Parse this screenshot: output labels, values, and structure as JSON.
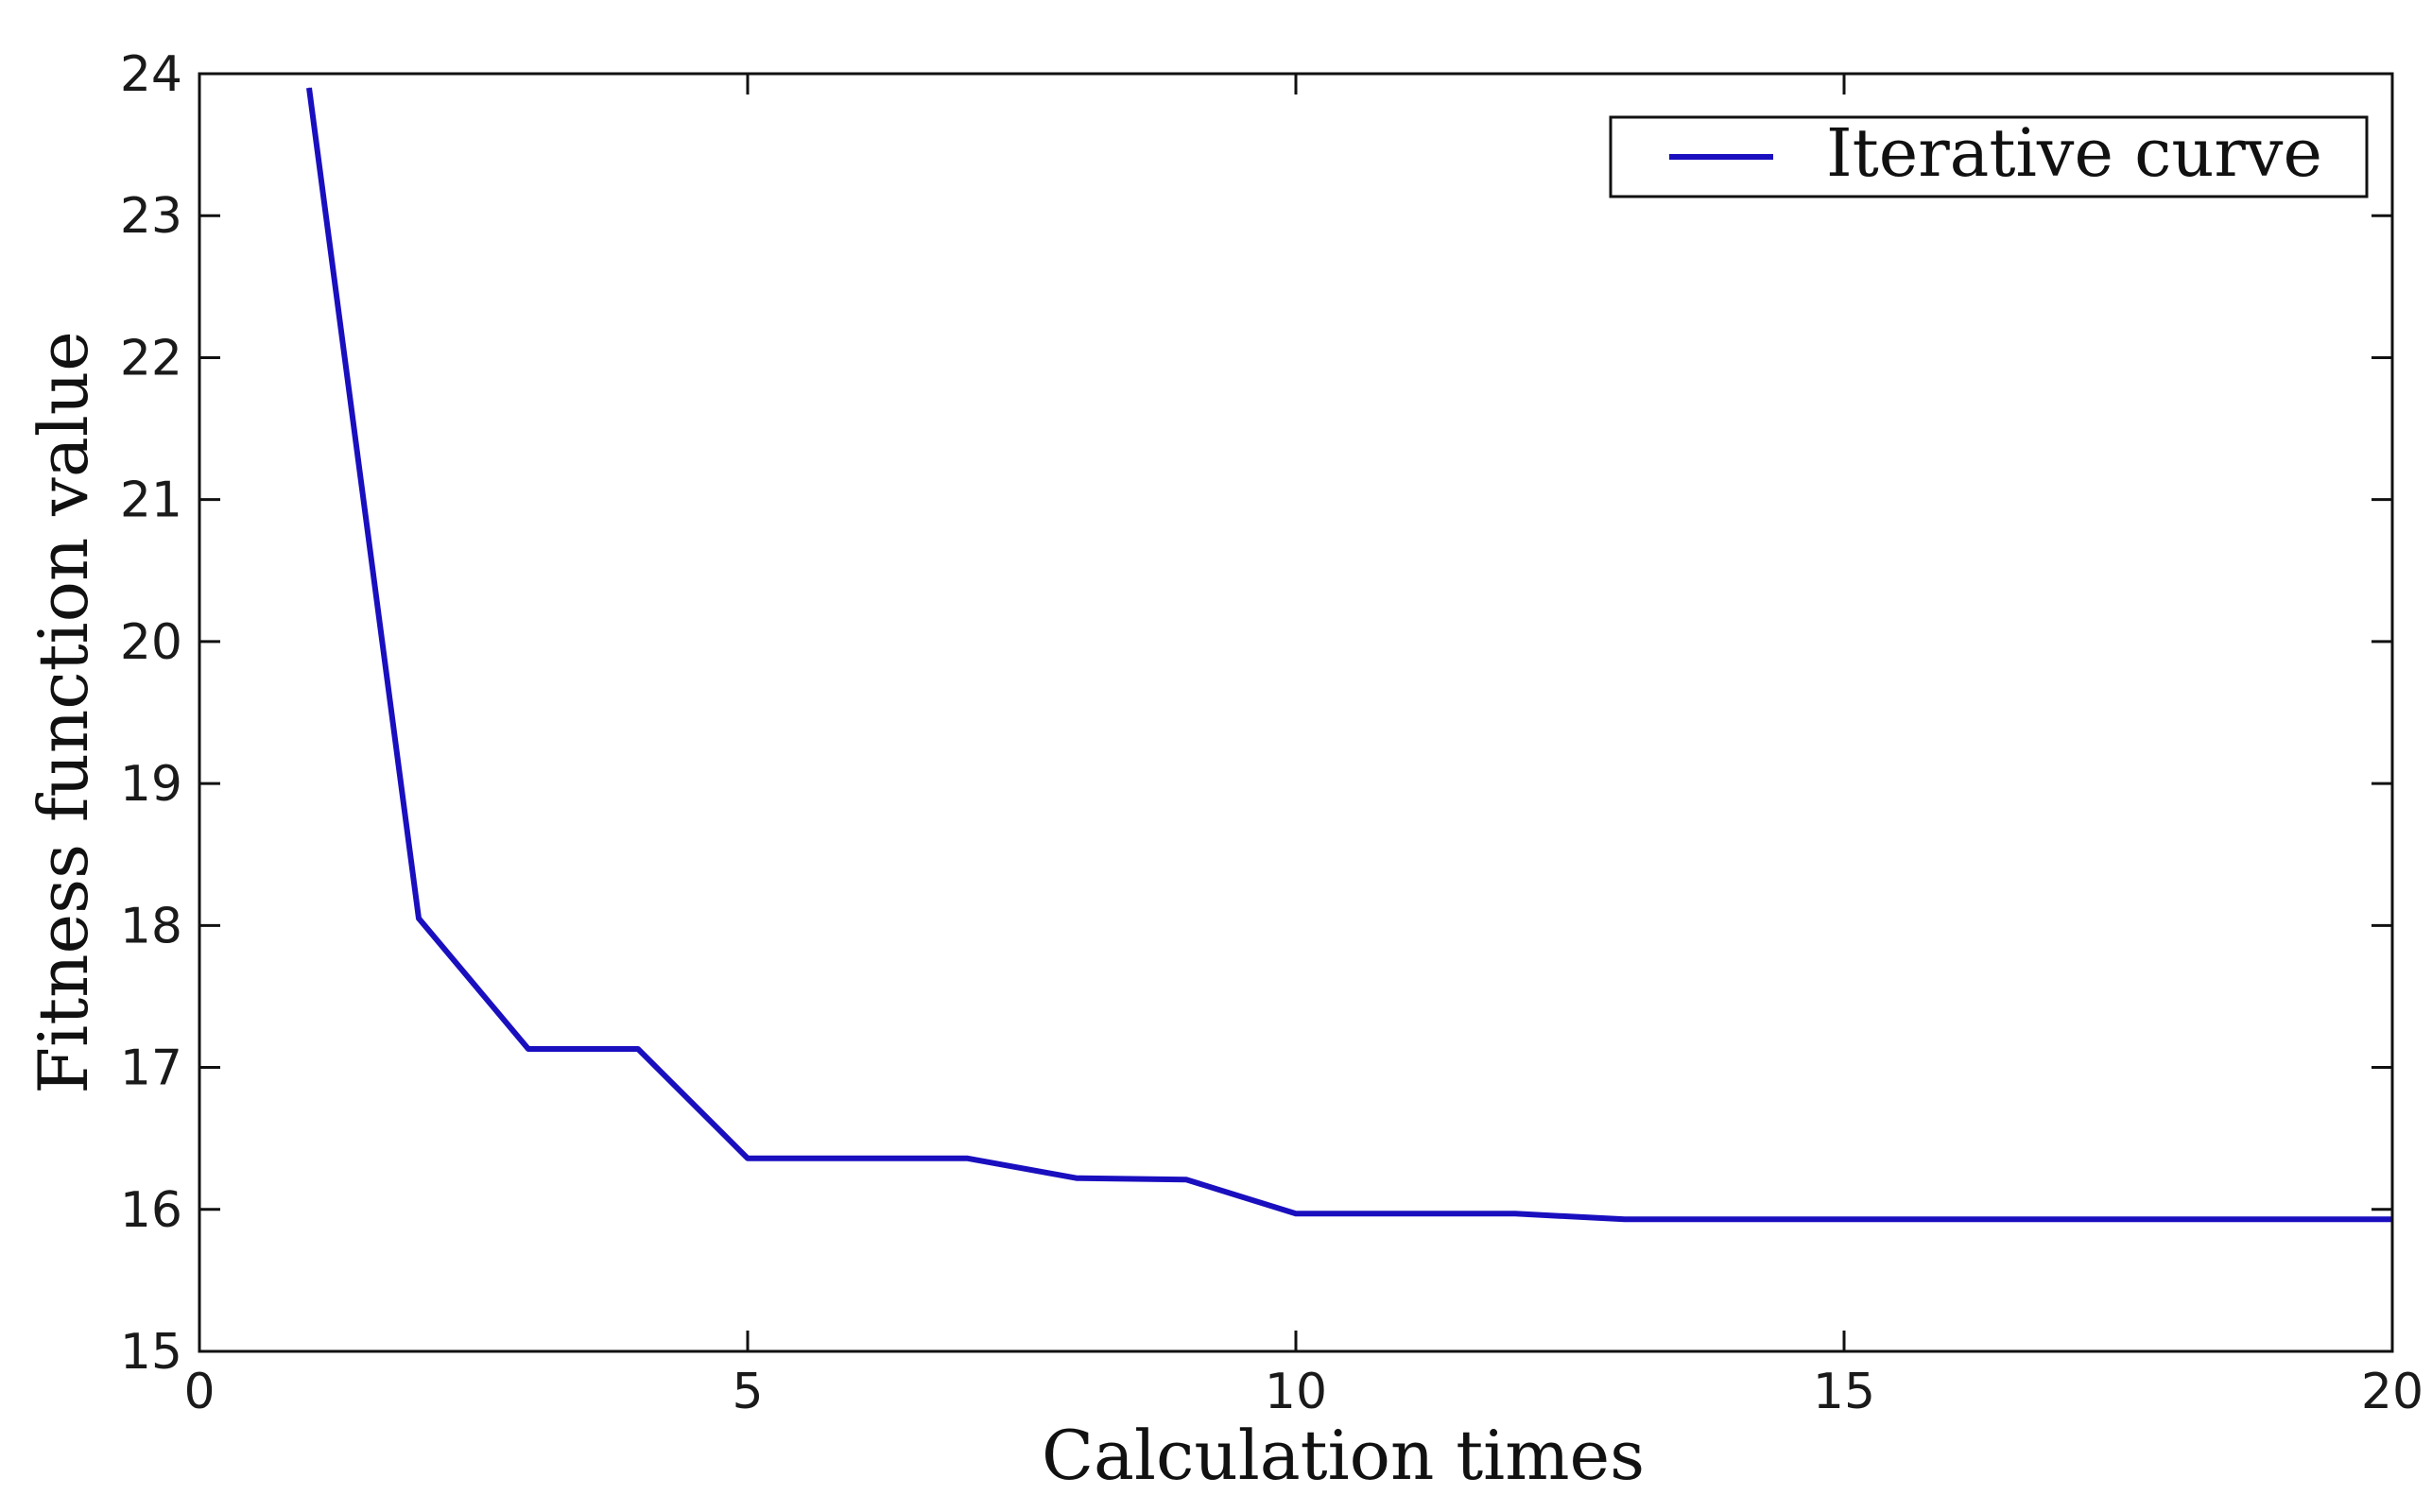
{
  "chart_data": {
    "type": "line",
    "xlabel": "Calculation times",
    "ylabel": "Fitness function value",
    "xlim": [
      0,
      20
    ],
    "ylim": [
      15,
      24
    ],
    "xticks": [
      "0",
      "5",
      "10",
      "15",
      "20"
    ],
    "yticks": [
      "15",
      "16",
      "17",
      "18",
      "19",
      "20",
      "21",
      "22",
      "23",
      "24"
    ],
    "grid": false,
    "legend_position": "top-right",
    "series": [
      {
        "name": "Iterative curve",
        "color": "#1a0fbf",
        "x": [
          1,
          2,
          3,
          4,
          5,
          6,
          7,
          8,
          9,
          10,
          11,
          12,
          13,
          14,
          15,
          16,
          17,
          18,
          19,
          20
        ],
        "y": [
          23.9,
          18.05,
          17.13,
          17.13,
          16.36,
          16.36,
          16.36,
          16.22,
          16.21,
          15.97,
          15.97,
          15.97,
          15.93,
          15.93,
          15.93,
          15.93,
          15.93,
          15.93,
          15.93,
          15.93
        ]
      }
    ]
  }
}
